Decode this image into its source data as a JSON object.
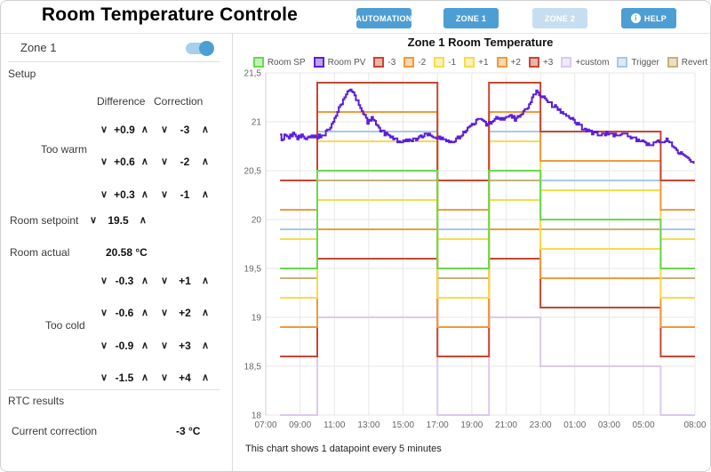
{
  "colors": {
    "accent": "#4d9ed3",
    "accent_disabled": "#c7def0",
    "toggle_track": "#a6cfeb"
  },
  "icons": {
    "chevron_down": "∨",
    "chevron_up": "∧",
    "info": "i"
  },
  "header": {
    "title": "Room Temperature Controle",
    "buttons": [
      {
        "label": "AUTOMATION",
        "style": "primary"
      },
      {
        "label": "ZONE 1",
        "style": "primary"
      },
      {
        "label": "ZONE 2",
        "style": "disabled"
      },
      {
        "label": "HELP",
        "style": "primary",
        "icon": "info-icon"
      }
    ]
  },
  "sidebar": {
    "zone_toggle": {
      "label": "Zone 1",
      "state": "on"
    },
    "setup": {
      "section_label": "Setup",
      "columns": {
        "difference": "Difference",
        "correction": "Correction"
      },
      "too_warm": {
        "label": "Too warm",
        "rows": [
          {
            "difference": "+0.9",
            "correction": "-3"
          },
          {
            "difference": "+0.6",
            "correction": "-2"
          },
          {
            "difference": "+0.3",
            "correction": "-1"
          }
        ]
      },
      "room_setpoint": {
        "label": "Room setpoint",
        "value": "19.5"
      },
      "room_actual": {
        "label": "Room actual",
        "value": "20.58 °C"
      },
      "too_cold": {
        "label": "Too cold",
        "rows": [
          {
            "difference": "-0.3",
            "correction": "+1"
          },
          {
            "difference": "-0.6",
            "correction": "+2"
          },
          {
            "difference": "-0.9",
            "correction": "+3"
          },
          {
            "difference": "-1.5",
            "correction": "+4"
          }
        ]
      }
    },
    "rtc": {
      "section_label": "RTC results",
      "current_correction_label": "Current correction",
      "current_correction_value": "-3 °C"
    }
  },
  "chart": {
    "title": "Zone 1 Room Temperature",
    "footnote": "This chart shows 1 datapoint every 5 minutes"
  },
  "chart_data": {
    "type": "line",
    "title": "Zone 1 Room Temperature",
    "interval_minutes": 5,
    "x_axis": {
      "ticks": [
        "07:00",
        "09:00",
        "11:00",
        "13:00",
        "15:00",
        "17:00",
        "19:00",
        "21:00",
        "23:00",
        "01:00",
        "03:00",
        "05:00",
        "08:00"
      ],
      "tick_hours": [
        0,
        2,
        4,
        6,
        8,
        10,
        12,
        14,
        16,
        18,
        20,
        22,
        25
      ],
      "start_hour": 7,
      "span_hours": 25
    },
    "y_axis": {
      "min": 18,
      "max": 21.5,
      "step": 0.5,
      "tick_labels": [
        "18",
        "18,5",
        "19",
        "19,5",
        "20",
        "20,5",
        "21",
        "21,5"
      ]
    },
    "grid": true,
    "legend_position": "top",
    "setpoint_schedule": [
      {
        "from": "07:50",
        "to": "10:00",
        "sp": 19.5
      },
      {
        "from": "10:00",
        "to": "17:00",
        "sp": 20.5
      },
      {
        "from": "17:00",
        "to": "20:00",
        "sp": 19.5
      },
      {
        "from": "20:00",
        "to": "23:00",
        "sp": 20.5
      },
      {
        "from": "23:00",
        "to": "06:00",
        "sp": 20.0
      },
      {
        "from": "06:00",
        "to": "08:00",
        "sp": 19.5
      }
    ],
    "series": [
      {
        "name": "Room SP",
        "color": "#68d94d",
        "kind": "schedule",
        "offset": 0
      },
      {
        "name": "Room PV",
        "color": "#5b1fd9",
        "kind": "pv"
      },
      {
        "name": "-3",
        "color": "#c84532",
        "kind": "schedule",
        "offset": 0.9
      },
      {
        "name": "-2",
        "color": "#ef9a3d",
        "kind": "schedule",
        "offset": 0.6
      },
      {
        "name": "-1",
        "color": "#f6dc48",
        "kind": "schedule",
        "offset": 0.3
      },
      {
        "name": "+1",
        "color": "#f6dc48",
        "kind": "schedule",
        "offset": -0.3
      },
      {
        "name": "+2",
        "color": "#ef9a3d",
        "kind": "schedule",
        "offset": -0.6
      },
      {
        "name": "+3",
        "color": "#c84532",
        "kind": "schedule",
        "offset": -0.9
      },
      {
        "name": "+custom",
        "color": "#dcc9ee",
        "kind": "schedule",
        "offset": -1.5
      },
      {
        "name": "Trigger",
        "color": "#a5c9e6",
        "kind": "schedule",
        "offset": 0.4
      },
      {
        "name": "Revert",
        "color": "#c6b177",
        "kind": "schedule",
        "offset": -0.1
      }
    ],
    "pv_keypoints": [
      [
        "07:50",
        20.88
      ],
      [
        "07:55",
        20.8
      ],
      [
        "08:05",
        20.86
      ],
      [
        "08:20",
        20.84
      ],
      [
        "08:35",
        20.88
      ],
      [
        "08:50",
        20.83
      ],
      [
        "09:05",
        20.86
      ],
      [
        "09:20",
        20.82
      ],
      [
        "09:40",
        20.85
      ],
      [
        "10:00",
        20.85
      ],
      [
        "10:20",
        20.86
      ],
      [
        "10:40",
        20.93
      ],
      [
        "11:00",
        21.03
      ],
      [
        "11:20",
        21.17
      ],
      [
        "11:40",
        21.28
      ],
      [
        "11:55",
        21.33
      ],
      [
        "12:10",
        21.27
      ],
      [
        "12:25",
        21.17
      ],
      [
        "12:40",
        21.07
      ],
      [
        "12:55",
        21.0
      ],
      [
        "13:10",
        21.04
      ],
      [
        "13:25",
        20.96
      ],
      [
        "13:45",
        20.9
      ],
      [
        "14:05",
        20.86
      ],
      [
        "14:30",
        20.82
      ],
      [
        "14:50",
        20.79
      ],
      [
        "15:10",
        20.82
      ],
      [
        "15:30",
        20.8
      ],
      [
        "15:50",
        20.84
      ],
      [
        "16:10",
        20.86
      ],
      [
        "16:30",
        20.88
      ],
      [
        "16:50",
        20.85
      ],
      [
        "17:10",
        20.83
      ],
      [
        "17:30",
        20.8
      ],
      [
        "17:50",
        20.78
      ],
      [
        "18:10",
        20.83
      ],
      [
        "18:30",
        20.88
      ],
      [
        "18:50",
        20.94
      ],
      [
        "19:10",
        21.0
      ],
      [
        "19:30",
        21.02
      ],
      [
        "19:50",
        20.97
      ],
      [
        "20:10",
        21.0
      ],
      [
        "20:30",
        21.05
      ],
      [
        "20:50",
        21.02
      ],
      [
        "21:10",
        21.07
      ],
      [
        "21:30",
        21.03
      ],
      [
        "21:50",
        21.08
      ],
      [
        "22:10",
        21.13
      ],
      [
        "22:30",
        21.24
      ],
      [
        "22:45",
        21.3
      ],
      [
        "23:00",
        21.28
      ],
      [
        "23:20",
        21.22
      ],
      [
        "23:40",
        21.17
      ],
      [
        "00:00",
        21.13
      ],
      [
        "00:20",
        21.09
      ],
      [
        "00:45",
        21.03
      ],
      [
        "01:10",
        20.97
      ],
      [
        "01:35",
        20.92
      ],
      [
        "02:00",
        20.89
      ],
      [
        "02:30",
        20.87
      ],
      [
        "03:00",
        20.88
      ],
      [
        "03:30",
        20.86
      ],
      [
        "04:00",
        20.87
      ],
      [
        "04:30",
        20.83
      ],
      [
        "05:00",
        20.78
      ],
      [
        "05:20",
        20.76
      ],
      [
        "05:40",
        20.8
      ],
      [
        "06:00",
        20.78
      ],
      [
        "06:20",
        20.82
      ],
      [
        "06:40",
        20.76
      ],
      [
        "07:00",
        20.7
      ],
      [
        "07:20",
        20.66
      ],
      [
        "07:40",
        20.61
      ],
      [
        "07:55",
        20.58
      ]
    ]
  }
}
